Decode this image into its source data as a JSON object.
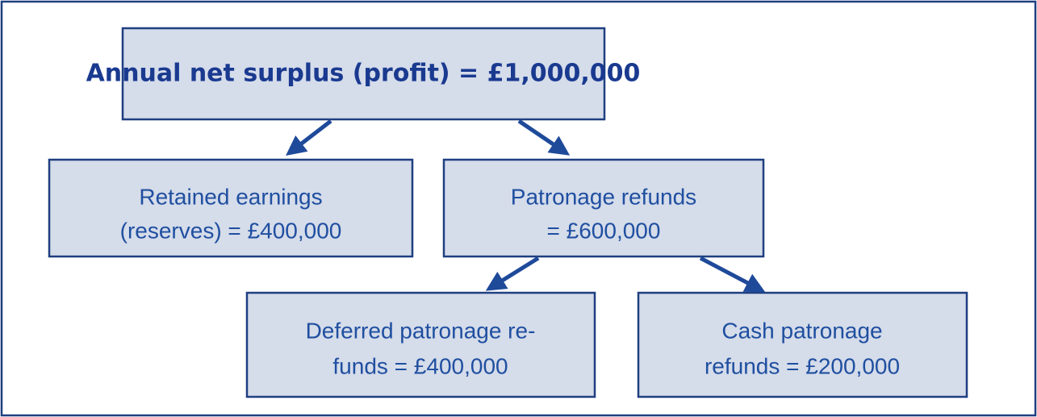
{
  "nodes": [
    {
      "lines": [
        "Annual net surplus (profit) = £1,000,000"
      ]
    },
    {
      "lines": [
        "Retained earnings",
        "(reserves) = £400,000"
      ]
    },
    {
      "lines": [
        "Patronage refunds",
        "= £600,000"
      ]
    },
    {
      "lines": [
        "Deferred patronage re-",
        "funds = £400,000"
      ]
    },
    {
      "lines": [
        "Cash patronage",
        "refunds = £200,000"
      ]
    }
  ]
}
